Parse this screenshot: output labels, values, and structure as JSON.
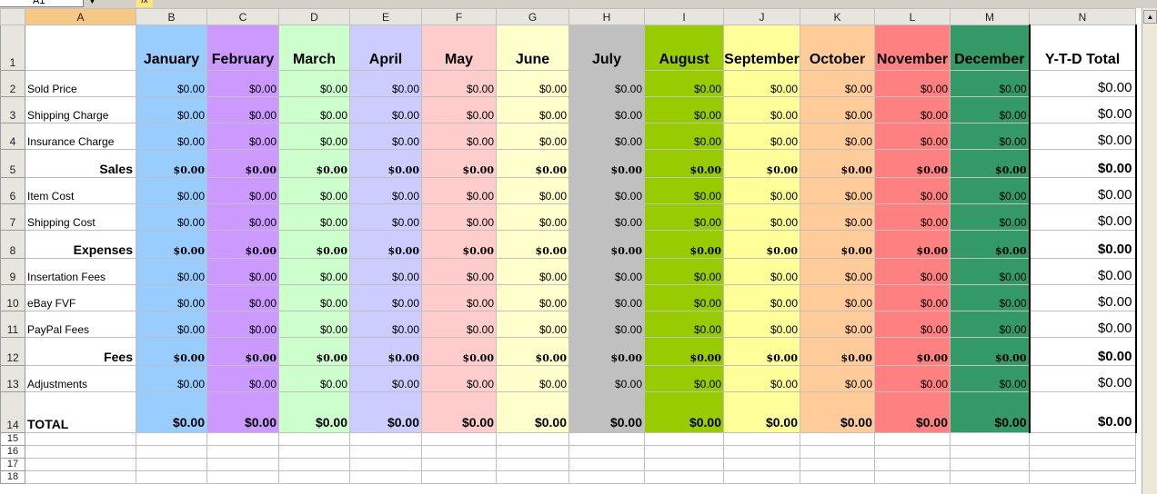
{
  "namebox": {
    "value": "A1",
    "arrow_icon": "dropdown-arrow-icon"
  },
  "formula_bar": {
    "fx_label": "fx"
  },
  "columns": [
    "A",
    "B",
    "C",
    "D",
    "E",
    "F",
    "G",
    "H",
    "I",
    "J",
    "K",
    "L",
    "M",
    "N"
  ],
  "months": [
    {
      "name": "January",
      "color": "#99ccff"
    },
    {
      "name": "February",
      "color": "#cc99ff"
    },
    {
      "name": "March",
      "color": "#ccffcc"
    },
    {
      "name": "April",
      "color": "#ccccff"
    },
    {
      "name": "May",
      "color": "#ffcccc"
    },
    {
      "name": "June",
      "color": "#ffffcc"
    },
    {
      "name": "July",
      "color": "#c0c0c0"
    },
    {
      "name": "August",
      "color": "#99cc00"
    },
    {
      "name": "September",
      "color": "#ffff99"
    },
    {
      "name": "October",
      "color": "#ffcc99"
    },
    {
      "name": "November",
      "color": "#ff8080"
    },
    {
      "name": "December",
      "color": "#339966"
    }
  ],
  "ytd_header": "Y-T-D Total",
  "rows": [
    {
      "num": "2",
      "label": "Sold Price",
      "style": "normal",
      "values": [
        "$0.00",
        "$0.00",
        "$0.00",
        "$0.00",
        "$0.00",
        "$0.00",
        "$0.00",
        "$0.00",
        "$0.00",
        "$0.00",
        "$0.00",
        "$0.00"
      ],
      "ytd": "$0.00"
    },
    {
      "num": "3",
      "label": "Shipping Charge",
      "style": "normal",
      "values": [
        "$0.00",
        "$0.00",
        "$0.00",
        "$0.00",
        "$0.00",
        "$0.00",
        "$0.00",
        "$0.00",
        "$0.00",
        "$0.00",
        "$0.00",
        "$0.00"
      ],
      "ytd": "$0.00"
    },
    {
      "num": "4",
      "label": "Insurance Charge",
      "style": "normal",
      "values": [
        "$0.00",
        "$0.00",
        "$0.00",
        "$0.00",
        "$0.00",
        "$0.00",
        "$0.00",
        "$0.00",
        "$0.00",
        "$0.00",
        "$0.00",
        "$0.00"
      ],
      "ytd": "$0.00"
    },
    {
      "num": "5",
      "label": "Sales",
      "style": "bold",
      "values": [
        "$0.00",
        "$0.00",
        "$0.00",
        "$0.00",
        "$0.00",
        "$0.00",
        "$0.00",
        "$0.00",
        "$0.00",
        "$0.00",
        "$0.00",
        "$0.00"
      ],
      "ytd": "$0.00"
    },
    {
      "num": "6",
      "label": "Item Cost",
      "style": "normal",
      "values": [
        "$0.00",
        "$0.00",
        "$0.00",
        "$0.00",
        "$0.00",
        "$0.00",
        "$0.00",
        "$0.00",
        "$0.00",
        "$0.00",
        "$0.00",
        "$0.00"
      ],
      "ytd": "$0.00"
    },
    {
      "num": "7",
      "label": "Shipping Cost",
      "style": "normal",
      "values": [
        "$0.00",
        "$0.00",
        "$0.00",
        "$0.00",
        "$0.00",
        "$0.00",
        "$0.00",
        "$0.00",
        "$0.00",
        "$0.00",
        "$0.00",
        "$0.00"
      ],
      "ytd": "$0.00"
    },
    {
      "num": "8",
      "label": "Expenses",
      "style": "bold",
      "values": [
        "$0.00",
        "$0.00",
        "$0.00",
        "$0.00",
        "$0.00",
        "$0.00",
        "$0.00",
        "$0.00",
        "$0.00",
        "$0.00",
        "$0.00",
        "$0.00"
      ],
      "ytd": "$0.00"
    },
    {
      "num": "9",
      "label": "Insertation Fees",
      "style": "normal",
      "values": [
        "$0.00",
        "$0.00",
        "$0.00",
        "$0.00",
        "$0.00",
        "$0.00",
        "$0.00",
        "$0.00",
        "$0.00",
        "$0.00",
        "$0.00",
        "$0.00"
      ],
      "ytd": "$0.00"
    },
    {
      "num": "10",
      "label": "eBay FVF",
      "style": "normal",
      "values": [
        "$0.00",
        "$0.00",
        "$0.00",
        "$0.00",
        "$0.00",
        "$0.00",
        "$0.00",
        "$0.00",
        "$0.00",
        "$0.00",
        "$0.00",
        "$0.00"
      ],
      "ytd": "$0.00"
    },
    {
      "num": "11",
      "label": "PayPal Fees",
      "style": "normal",
      "values": [
        "$0.00",
        "$0.00",
        "$0.00",
        "$0.00",
        "$0.00",
        "$0.00",
        "$0.00",
        "$0.00",
        "$0.00",
        "$0.00",
        "$0.00",
        "$0.00"
      ],
      "ytd": "$0.00"
    },
    {
      "num": "12",
      "label": "Fees",
      "style": "bold",
      "values": [
        "$0.00",
        "$0.00",
        "$0.00",
        "$0.00",
        "$0.00",
        "$0.00",
        "$0.00",
        "$0.00",
        "$0.00",
        "$0.00",
        "$0.00",
        "$0.00"
      ],
      "ytd": "$0.00"
    },
    {
      "num": "13",
      "label": "Adjustments",
      "style": "normal",
      "values": [
        "$0.00",
        "$0.00",
        "$0.00",
        "$0.00",
        "$0.00",
        "$0.00",
        "$0.00",
        "$0.00",
        "$0.00",
        "$0.00",
        "$0.00",
        "$0.00"
      ],
      "ytd": "$0.00"
    },
    {
      "num": "14",
      "label": "TOTAL",
      "style": "total",
      "values": [
        "$0.00",
        "$0.00",
        "$0.00",
        "$0.00",
        "$0.00",
        "$0.00",
        "$0.00",
        "$0.00",
        "$0.00",
        "$0.00",
        "$0.00",
        "$0.00"
      ],
      "ytd": "$0.00"
    }
  ],
  "header_row_num": "1",
  "empty_rows": [
    "15",
    "16",
    "17",
    "18"
  ]
}
